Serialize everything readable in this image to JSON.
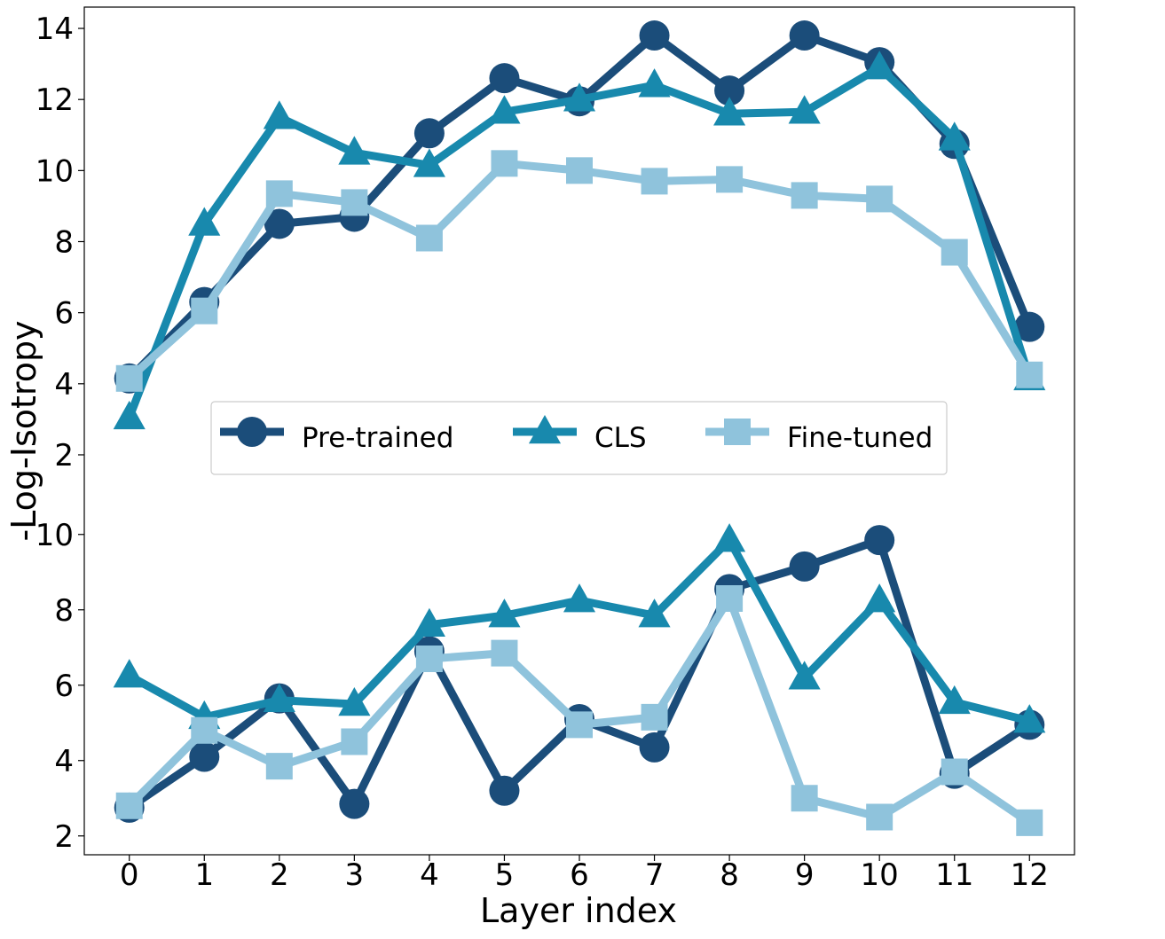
{
  "chart_data": {
    "type": "line",
    "xlabel": "Layer index",
    "ylabel": "-Log-Isotropy",
    "x": [
      0,
      1,
      2,
      3,
      4,
      5,
      6,
      7,
      8,
      9,
      10,
      11,
      12
    ],
    "xlim": [
      -0.6,
      12.6
    ],
    "legend_position": "center",
    "grid": false,
    "series_styles": [
      {
        "name": "Pre-trained",
        "color": "#1b4d7a",
        "marker": "circle"
      },
      {
        "name": "CLS",
        "color": "#1889ad",
        "marker": "triangle"
      },
      {
        "name": "Fine-tuned",
        "color": "#8fc3dc",
        "marker": "square"
      }
    ],
    "panels": [
      {
        "id": "top",
        "ylim": [
          1.5,
          14.6
        ],
        "yticks": [
          2,
          4,
          6,
          8,
          10,
          12,
          14
        ],
        "series": [
          {
            "name": "Pre-trained",
            "values": [
              4.15,
              6.3,
              8.5,
              8.7,
              11.05,
              12.6,
              11.95,
              13.8,
              12.25,
              13.8,
              13.05,
              10.75,
              5.6
            ]
          },
          {
            "name": "CLS",
            "values": [
              3.05,
              8.5,
              11.5,
              10.5,
              10.15,
              11.65,
              12.0,
              12.4,
              11.6,
              11.65,
              12.9,
              10.9,
              4.15
            ]
          },
          {
            "name": "Fine-tuned",
            "values": [
              4.15,
              6.05,
              9.35,
              9.1,
              8.1,
              10.2,
              10.0,
              9.7,
              9.75,
              9.3,
              9.2,
              7.7,
              4.25
            ]
          }
        ]
      },
      {
        "id": "bottom",
        "ylim": [
          1.5,
          10.3
        ],
        "yticks": [
          2,
          4,
          6,
          8,
          10
        ],
        "series": [
          {
            "name": "Pre-trained",
            "values": [
              2.75,
              4.1,
              5.65,
              2.85,
              6.9,
              3.2,
              5.1,
              4.35,
              8.55,
              9.15,
              9.85,
              3.65,
              4.95
            ]
          },
          {
            "name": "CLS",
            "values": [
              6.25,
              5.15,
              5.6,
              5.5,
              7.6,
              7.85,
              8.25,
              7.85,
              9.85,
              6.2,
              8.25,
              5.55,
              5.05
            ]
          },
          {
            "name": "Fine-tuned",
            "values": [
              2.8,
              4.8,
              3.85,
              4.5,
              6.7,
              6.85,
              4.95,
              5.15,
              8.3,
              3.0,
              2.5,
              3.7,
              2.35
            ]
          }
        ]
      }
    ]
  }
}
